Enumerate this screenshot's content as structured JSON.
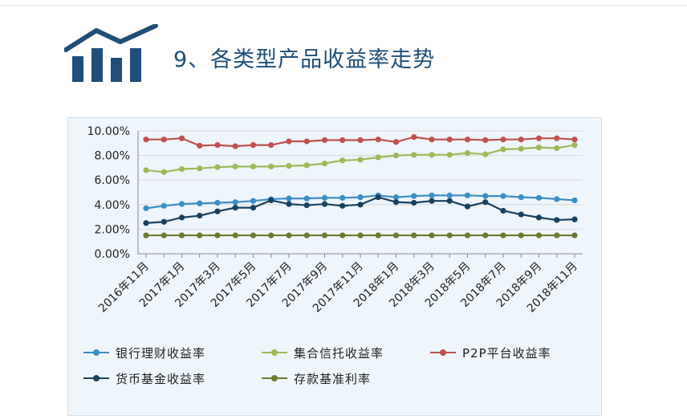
{
  "header": {
    "title": "9、各类型产品收益率走势"
  },
  "icons": {
    "logo": "bar-chart-trend-icon"
  },
  "colors": {
    "title": "#1f4e79",
    "logo": "#1f4e79",
    "panel": "#eef5fb",
    "grid": "#d9d9d9"
  },
  "chart_data": {
    "type": "line",
    "title": "",
    "xlabel": "",
    "ylabel": "",
    "ylim": [
      0,
      10
    ],
    "yticks": [
      "0.00%",
      "2.00%",
      "4.00%",
      "6.00%",
      "8.00%",
      "10.00%"
    ],
    "x": [
      "2016年11月",
      "2016年12月",
      "2017年1月",
      "2017年2月",
      "2017年3月",
      "2017年4月",
      "2017年5月",
      "2017年6月",
      "2017年7月",
      "2017年8月",
      "2017年9月",
      "2017年10月",
      "2017年11月",
      "2017年12月",
      "2018年1月",
      "2018年2月",
      "2018年3月",
      "2018年4月",
      "2018年5月",
      "2018年6月",
      "2018年7月",
      "2018年8月",
      "2018年9月",
      "2018年10月",
      "2018年11月"
    ],
    "xtick_labels": [
      "2016年11月",
      "2017年1月",
      "2017年3月",
      "2017年5月",
      "2017年7月",
      "2017年9月",
      "2017年11月",
      "2018年1月",
      "2018年3月",
      "2018年5月",
      "2018年7月",
      "2018年9月",
      "2018年11月"
    ],
    "series": [
      {
        "name": "银行理财收益率",
        "color": "#3a8fc7",
        "values": [
          3.7,
          3.9,
          4.05,
          4.1,
          4.15,
          4.2,
          4.3,
          4.45,
          4.5,
          4.5,
          4.55,
          4.55,
          4.6,
          4.75,
          4.6,
          4.7,
          4.75,
          4.75,
          4.75,
          4.7,
          4.7,
          4.6,
          4.55,
          4.45,
          4.35
        ]
      },
      {
        "name": "集合信托收益率",
        "color": "#9bbb59",
        "values": [
          6.8,
          6.65,
          6.9,
          6.95,
          7.05,
          7.1,
          7.1,
          7.1,
          7.15,
          7.2,
          7.35,
          7.6,
          7.65,
          7.85,
          8.0,
          8.05,
          8.05,
          8.05,
          8.2,
          8.1,
          8.5,
          8.55,
          8.65,
          8.6,
          8.85
        ]
      },
      {
        "name": "P2P平台收益率",
        "color": "#c0504d",
        "values": [
          9.3,
          9.3,
          9.4,
          8.8,
          8.85,
          8.75,
          8.85,
          8.85,
          9.15,
          9.15,
          9.25,
          9.25,
          9.25,
          9.3,
          9.1,
          9.5,
          9.3,
          9.3,
          9.3,
          9.25,
          9.3,
          9.3,
          9.4,
          9.4,
          9.3
        ]
      },
      {
        "name": "货币基金收益率",
        "color": "#17415f",
        "values": [
          2.5,
          2.6,
          2.95,
          3.1,
          3.45,
          3.75,
          3.75,
          4.35,
          4.05,
          3.95,
          4.05,
          3.9,
          4.0,
          4.6,
          4.2,
          4.15,
          4.3,
          4.3,
          3.85,
          4.2,
          3.5,
          3.2,
          2.95,
          2.75,
          2.8
        ]
      },
      {
        "name": "存款基准利率",
        "color": "#6b7a32",
        "values": [
          1.5,
          1.5,
          1.5,
          1.5,
          1.5,
          1.5,
          1.5,
          1.5,
          1.5,
          1.5,
          1.5,
          1.5,
          1.5,
          1.5,
          1.5,
          1.5,
          1.5,
          1.5,
          1.5,
          1.5,
          1.5,
          1.5,
          1.5,
          1.5,
          1.5
        ]
      }
    ],
    "grid": true,
    "legend_position": "bottom"
  }
}
